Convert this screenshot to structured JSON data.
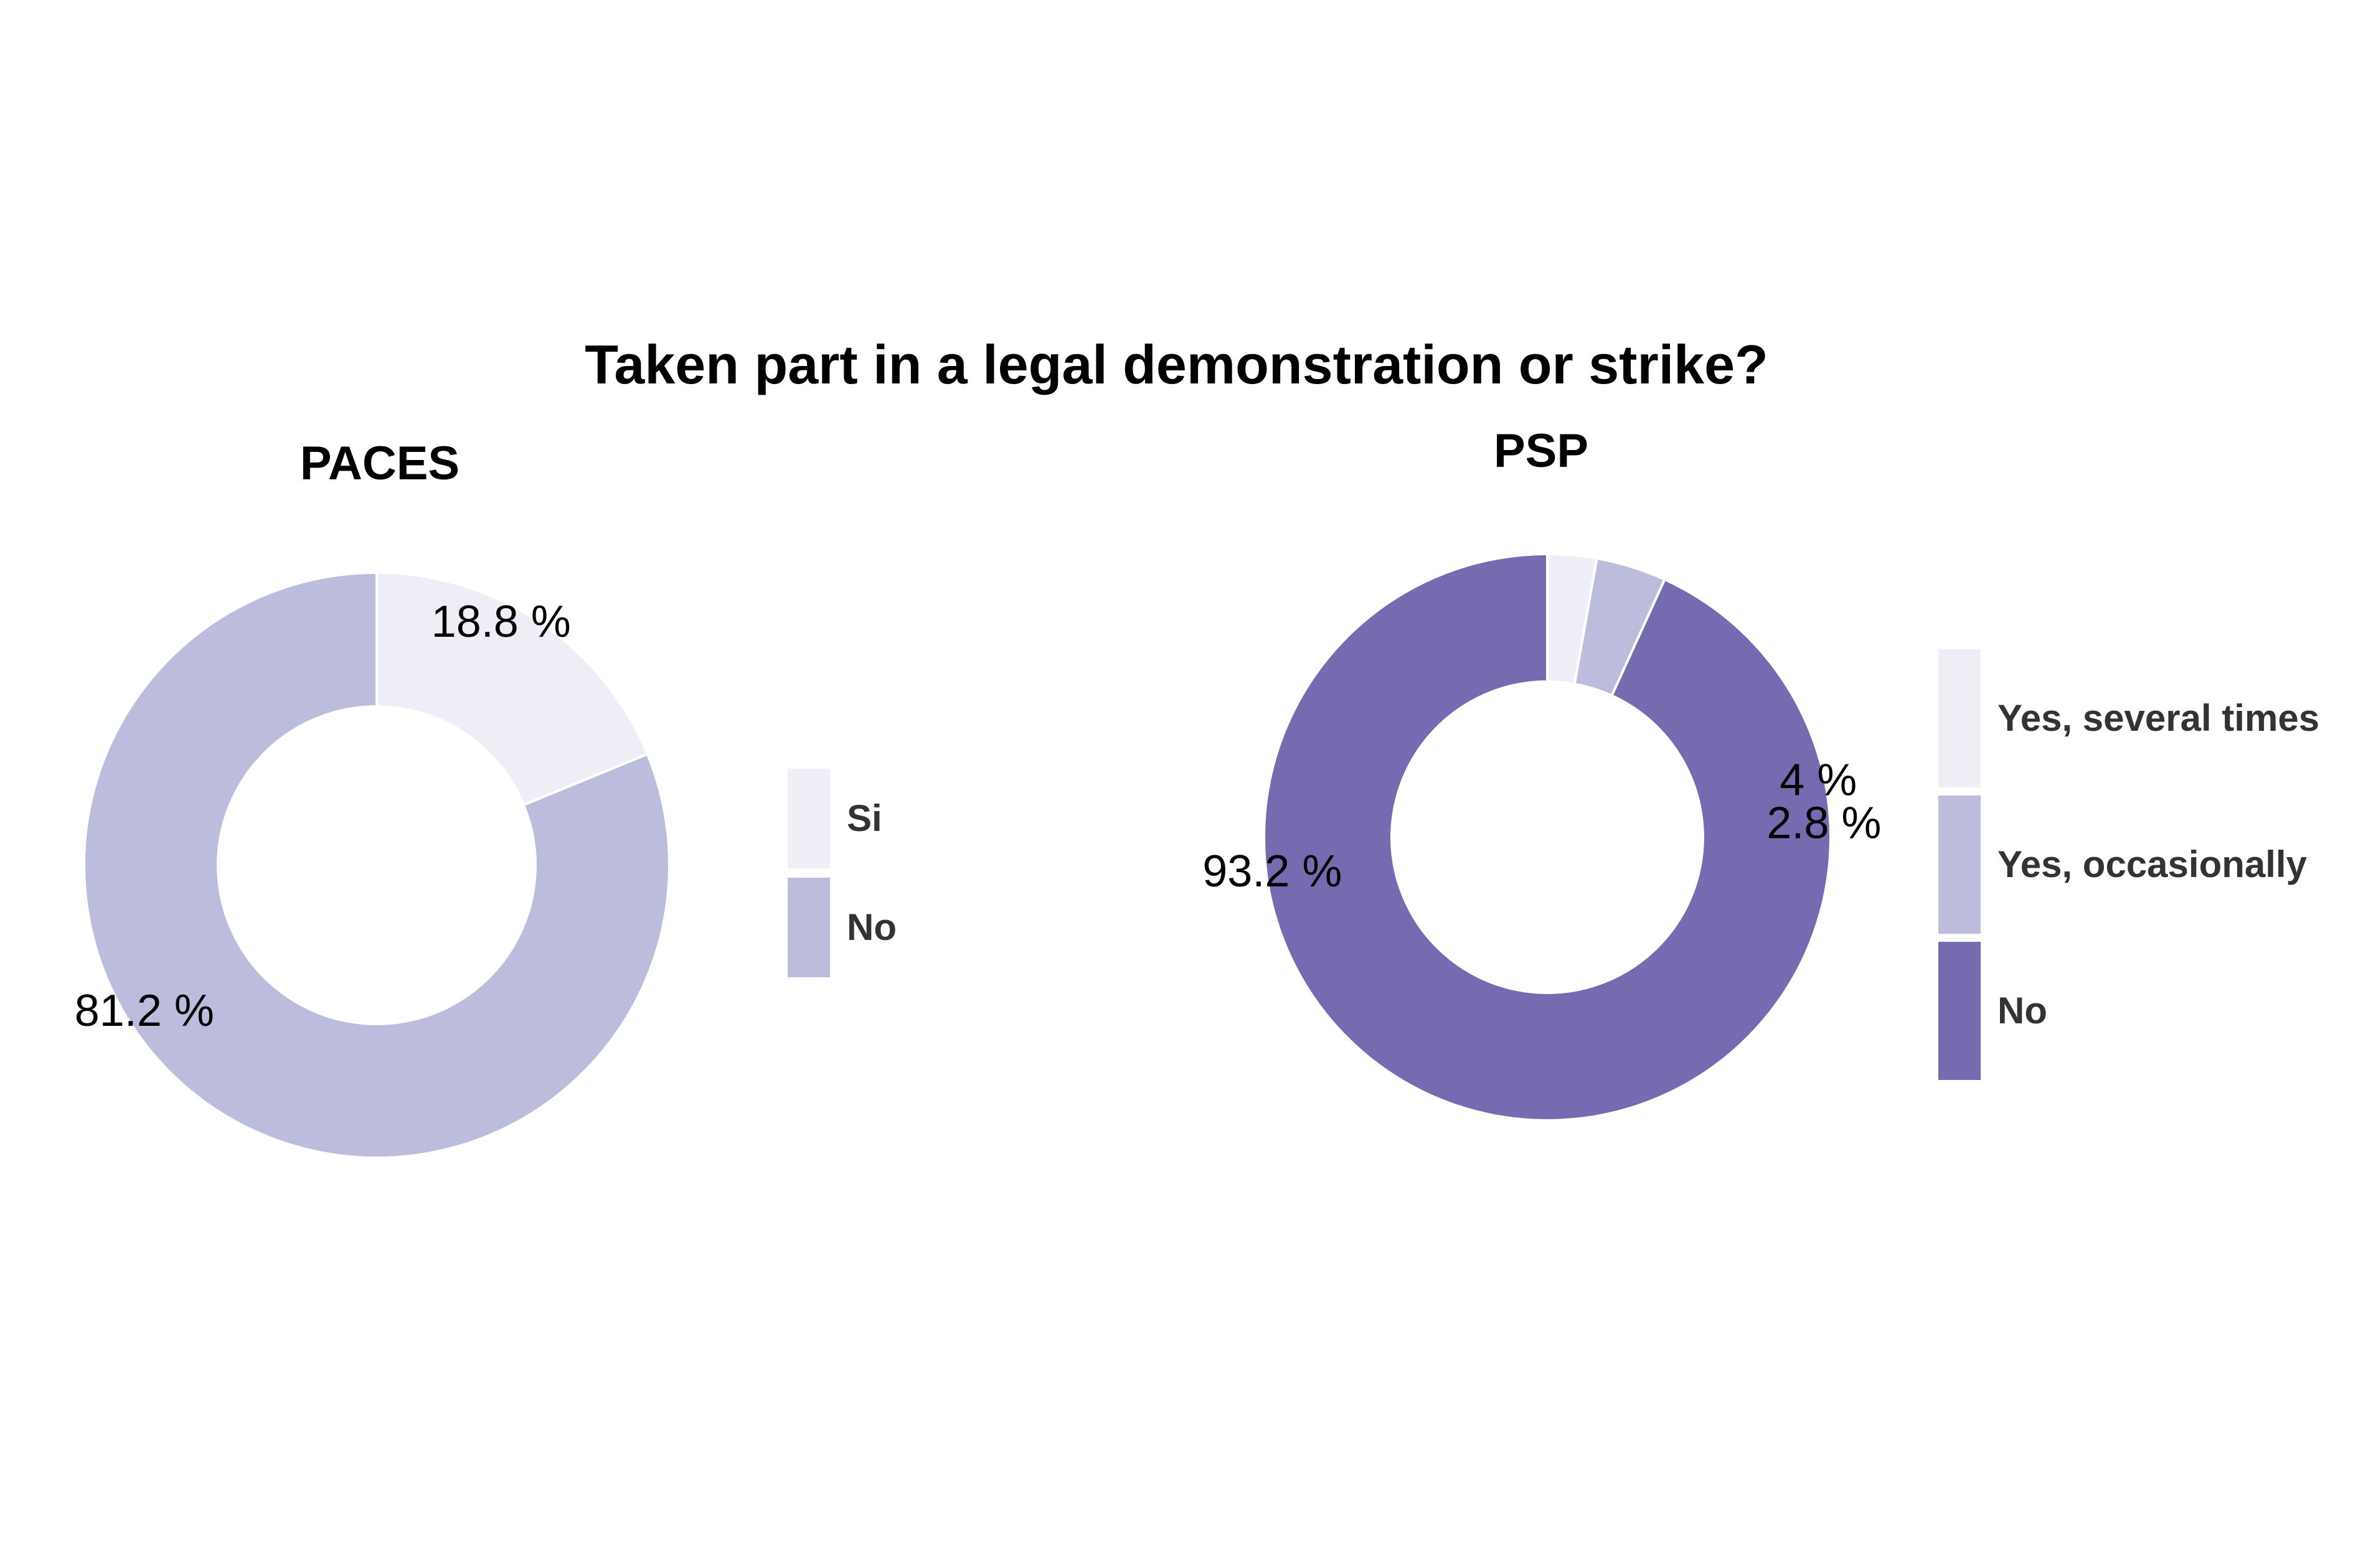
{
  "title": "Taken part in a legal demonstration or strike?",
  "chart_data": [
    {
      "type": "pie",
      "variant": "donut",
      "title": "PACES",
      "series": [
        {
          "name": "Si",
          "value": 18.8,
          "label": "18.8 %",
          "color": "#EFEDF5"
        },
        {
          "name": "No",
          "value": 81.2,
          "label": "81.2 %",
          "color": "#BCBDDC"
        }
      ],
      "legend": [
        "Si",
        "No"
      ],
      "legend_position": "right"
    },
    {
      "type": "pie",
      "variant": "donut",
      "title": "PSP",
      "series": [
        {
          "name": "Yes, several times",
          "value": 2.8,
          "label": "2.8 %",
          "color": "#EFEDF5"
        },
        {
          "name": "Yes, occasionally",
          "value": 4,
          "label": "4 %",
          "color": "#BCBDDC"
        },
        {
          "name": "No",
          "value": 93.2,
          "label": "93.2 %",
          "color": "#756BB1"
        }
      ],
      "legend": [
        "Yes, several times",
        "Yes, occasionally",
        "No"
      ],
      "legend_position": "right"
    }
  ]
}
